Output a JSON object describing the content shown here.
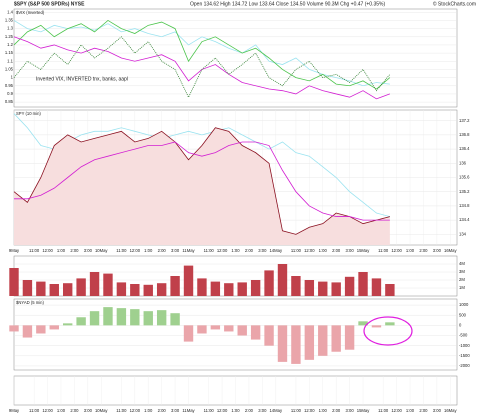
{
  "header": {
    "title": "$SPY (S&P 500 SPDRs) NYSE",
    "quote": "Open 134.62  High 134.72  Low 133.64  Close 134.50  Volume 90.3M  Chg +0.47 (+0.35%)",
    "source": "© StockCharts.com"
  },
  "chart_data": [
    {
      "type": "line",
      "title": "$VIX (Inverted)",
      "annotation": "Inverted VIX, INVERTED tnx, banks, aapl",
      "yaxis": "left",
      "xlim": [
        0,
        33
      ],
      "ylim": [
        0.82,
        1.42
      ],
      "yticks": [
        0.85,
        0.9,
        0.95,
        1.0,
        1.05,
        1.1,
        1.15,
        1.2,
        1.25,
        1.3,
        1.35,
        1.4
      ],
      "x": [
        0,
        1,
        2,
        3,
        4,
        5,
        6,
        7,
        8,
        9,
        10,
        11,
        12,
        13,
        14,
        15,
        16,
        17,
        18,
        19,
        20,
        21,
        22,
        23,
        24,
        25,
        26,
        27,
        28
      ],
      "series": [
        {
          "color": "#9be3f0",
          "values": [
            1.35,
            1.3,
            1.28,
            1.32,
            1.3,
            1.31,
            1.29,
            1.33,
            1.28,
            1.3,
            1.27,
            1.25,
            1.28,
            1.2,
            1.25,
            1.22,
            1.18,
            1.15,
            1.2,
            1.1,
            1.08,
            1.12,
            1.05,
            1.02,
            1.0,
            0.98,
            0.95,
            0.97,
            0.96
          ]
        },
        {
          "color": "#4cc44c",
          "values": [
            1.2,
            1.28,
            1.32,
            1.25,
            1.3,
            1.33,
            1.28,
            1.35,
            1.3,
            1.27,
            1.32,
            1.34,
            1.3,
            1.1,
            1.22,
            1.25,
            1.2,
            1.15,
            1.18,
            1.12,
            1.05,
            1.0,
            0.98,
            1.02,
            0.96,
            0.95,
            0.98,
            0.93,
            1.0
          ]
        },
        {
          "color": "#d21fd2",
          "values": [
            1.25,
            1.22,
            1.18,
            1.2,
            1.17,
            1.15,
            1.18,
            1.16,
            1.12,
            1.1,
            1.12,
            1.14,
            1.1,
            0.98,
            1.05,
            1.08,
            1.02,
            0.97,
            0.95,
            0.93,
            0.92,
            0.9,
            0.95,
            0.92,
            0.9,
            0.88,
            0.92,
            0.87,
            0.9
          ]
        },
        {
          "color": "#2e7d2e",
          "dash": true,
          "values": [
            1.0,
            1.1,
            1.05,
            1.15,
            1.08,
            1.2,
            1.12,
            1.18,
            1.25,
            1.15,
            1.22,
            1.1,
            1.05,
            0.88,
            1.05,
            1.12,
            1.02,
            1.08,
            1.15,
            1.0,
            0.95,
            1.05,
            1.1,
            1.0,
            1.02,
            0.97,
            1.05,
            0.92,
            1.02
          ]
        }
      ]
    },
    {
      "type": "line",
      "title": "SPY (10 min)",
      "yaxis": "right",
      "xlim": [
        0,
        33
      ],
      "ylim": [
        133.7,
        137.5
      ],
      "yticks": [
        134.0,
        134.4,
        134.8,
        135.2,
        135.6,
        136.0,
        136.4,
        136.8,
        137.2
      ],
      "xticks": [
        {
          "value": 0,
          "label": "9May"
        },
        {
          "value": 1.5,
          "label": "11:00"
        },
        {
          "value": 2.5,
          "label": "12:00"
        },
        {
          "value": 3.5,
          "label": "1:00"
        },
        {
          "value": 4.5,
          "label": "2:00"
        },
        {
          "value": 5.5,
          "label": "3:00"
        },
        {
          "value": 6.5,
          "label": "10May"
        },
        {
          "value": 8,
          "label": "11:00"
        },
        {
          "value": 9,
          "label": "12:00"
        },
        {
          "value": 10,
          "label": "1:00"
        },
        {
          "value": 11,
          "label": "2:00"
        },
        {
          "value": 12,
          "label": "3:00"
        },
        {
          "value": 13,
          "label": "11May"
        },
        {
          "value": 14.5,
          "label": "11:00"
        },
        {
          "value": 15.5,
          "label": "12:00"
        },
        {
          "value": 16.5,
          "label": "1:00"
        },
        {
          "value": 17.5,
          "label": "2:00"
        },
        {
          "value": 18.5,
          "label": "3:00"
        },
        {
          "value": 19.5,
          "label": "14May"
        },
        {
          "value": 21,
          "label": "11:00"
        },
        {
          "value": 22,
          "label": "12:00"
        },
        {
          "value": 23,
          "label": "1:00"
        },
        {
          "value": 24,
          "label": "2:00"
        },
        {
          "value": 25,
          "label": "3:00"
        },
        {
          "value": 26,
          "label": "15May"
        },
        {
          "value": 27.5,
          "label": "11:00"
        },
        {
          "value": 28.5,
          "label": "12:00"
        },
        {
          "value": 29.5,
          "label": "1:00"
        },
        {
          "value": 30.5,
          "label": "2:00"
        },
        {
          "value": 31.5,
          "label": "3:00"
        },
        {
          "value": 32.5,
          "label": "16May"
        }
      ],
      "x": [
        0,
        1,
        2,
        3,
        4,
        5,
        6,
        7,
        8,
        9,
        10,
        11,
        12,
        13,
        14,
        15,
        16,
        17,
        18,
        19,
        20,
        21,
        22,
        23,
        24,
        25,
        26,
        27,
        28
      ],
      "series": [
        {
          "color": "#9be3f0",
          "values": [
            137.4,
            137.0,
            136.5,
            136.4,
            136.6,
            136.8,
            136.9,
            136.9,
            137.0,
            136.9,
            136.8,
            136.7,
            136.8,
            136.9,
            136.8,
            136.9,
            137.0,
            136.8,
            136.6,
            136.4,
            136.6,
            136.3,
            136.2,
            135.9,
            135.6,
            135.2,
            134.9,
            134.6,
            134.5
          ]
        },
        {
          "color": "#8a1020",
          "fill": "#f7dede",
          "values": [
            135.2,
            134.9,
            135.6,
            136.5,
            136.8,
            136.6,
            136.7,
            136.8,
            136.9,
            136.6,
            136.7,
            136.9,
            136.6,
            136.1,
            136.5,
            137.0,
            136.9,
            136.5,
            136.3,
            136.0,
            134.1,
            134.0,
            134.2,
            134.3,
            134.6,
            134.5,
            134.3,
            134.4,
            134.5
          ]
        },
        {
          "color": "#d21fd2",
          "values": [
            135.0,
            135.0,
            135.1,
            135.3,
            135.6,
            135.9,
            136.1,
            136.2,
            136.3,
            136.4,
            136.5,
            136.5,
            136.6,
            136.3,
            136.2,
            136.3,
            136.5,
            136.6,
            136.6,
            136.5,
            135.8,
            135.2,
            134.8,
            134.6,
            134.5,
            134.5,
            134.4,
            134.4,
            134.4
          ]
        }
      ]
    },
    {
      "type": "bar",
      "yaxis": "right",
      "color": "#c0404a",
      "xlim": [
        0,
        33
      ],
      "ylim": [
        0,
        5
      ],
      "yticks": [
        {
          "value": 1,
          "label": "1M"
        },
        {
          "value": 2,
          "label": "2M"
        },
        {
          "value": 3,
          "label": "3M"
        },
        {
          "value": 4,
          "label": "4M"
        }
      ],
      "x": [
        0,
        1,
        2,
        3,
        4,
        5,
        6,
        7,
        8,
        9,
        10,
        11,
        12,
        13,
        14,
        15,
        16,
        17,
        18,
        19,
        20,
        21,
        22,
        23,
        24,
        25,
        26,
        27,
        28
      ],
      "values": [
        3.5,
        2.0,
        1.8,
        1.5,
        1.6,
        2.2,
        3.0,
        2.8,
        1.7,
        1.5,
        1.4,
        1.6,
        2.5,
        3.8,
        2.2,
        1.8,
        1.6,
        1.7,
        2.0,
        3.2,
        4.0,
        2.5,
        2.0,
        1.8,
        1.7,
        2.4,
        3.0,
        2.2,
        1.5
      ]
    },
    {
      "type": "bar",
      "title": "$NYAD (5 min)",
      "yaxis": "right",
      "color": "#9fd08f",
      "color_down": "#eaa5aa",
      "xlim": [
        0,
        33
      ],
      "ylim": [
        -2200,
        1300
      ],
      "yticks": [
        -2000,
        -1500,
        -1000,
        -500,
        0,
        500,
        1000
      ],
      "x": [
        0,
        1,
        2,
        3,
        4,
        5,
        6,
        7,
        8,
        9,
        10,
        11,
        12,
        13,
        14,
        15,
        16,
        17,
        18,
        19,
        20,
        21,
        22,
        23,
        24,
        25,
        26,
        27,
        28
      ],
      "values": [
        -300,
        -600,
        -400,
        -200,
        100,
        400,
        700,
        900,
        850,
        800,
        700,
        750,
        600,
        -800,
        -400,
        -200,
        -300,
        -500,
        -700,
        -1000,
        -1800,
        -1900,
        -1700,
        -1500,
        -1300,
        -1200,
        200,
        -100,
        150
      ]
    },
    {
      "type": "line",
      "yaxis": "right",
      "xlim": [
        0,
        33
      ],
      "ylim": [
        0,
        1
      ],
      "xticks": [
        {
          "value": 0,
          "label": "9May"
        },
        {
          "value": 1.5,
          "label": "11:00"
        },
        {
          "value": 2.5,
          "label": "12:00"
        },
        {
          "value": 3.5,
          "label": "1:00"
        },
        {
          "value": 4.5,
          "label": "2:00"
        },
        {
          "value": 5.5,
          "label": "3:00"
        },
        {
          "value": 6.5,
          "label": "10May"
        },
        {
          "value": 8,
          "label": "11:00"
        },
        {
          "value": 9,
          "label": "12:00"
        },
        {
          "value": 10,
          "label": "1:00"
        },
        {
          "value": 11,
          "label": "2:00"
        },
        {
          "value": 12,
          "label": "3:00"
        },
        {
          "value": 13,
          "label": "11May"
        },
        {
          "value": 14.5,
          "label": "11:00"
        },
        {
          "value": 15.5,
          "label": "12:00"
        },
        {
          "value": 16.5,
          "label": "1:00"
        },
        {
          "value": 17.5,
          "label": "2:00"
        },
        {
          "value": 18.5,
          "label": "3:00"
        },
        {
          "value": 19.5,
          "label": "14May"
        },
        {
          "value": 21,
          "label": "11:00"
        },
        {
          "value": 22,
          "label": "12:00"
        },
        {
          "value": 23,
          "label": "1:00"
        },
        {
          "value": 24,
          "label": "2:00"
        },
        {
          "value": 25,
          "label": "3:00"
        },
        {
          "value": 26,
          "label": "15May"
        },
        {
          "value": 27.5,
          "label": "11:00"
        },
        {
          "value": 28.5,
          "label": "12:00"
        },
        {
          "value": 29.5,
          "label": "1:00"
        },
        {
          "value": 30.5,
          "label": "2:00"
        },
        {
          "value": 31.5,
          "label": "3:00"
        },
        {
          "value": 32.5,
          "label": "16May"
        }
      ],
      "series": []
    }
  ]
}
